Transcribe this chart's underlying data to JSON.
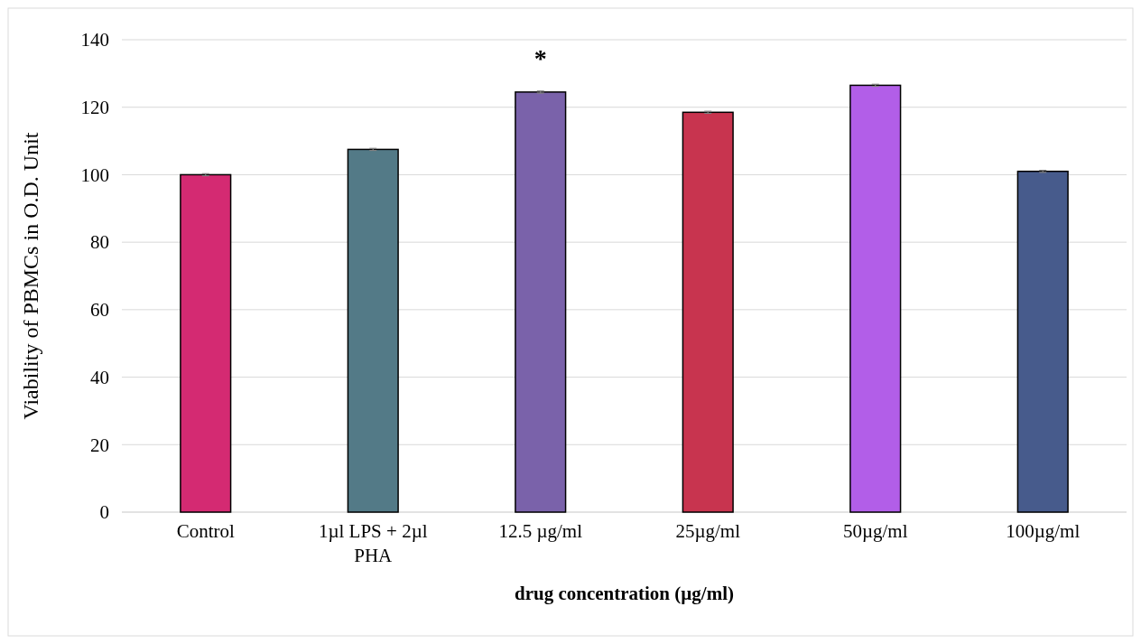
{
  "chart_data": {
    "type": "bar",
    "xlabel": "drug concentration (µg/ml)",
    "ylabel": "Viability of PBMCs in O.D. Unit",
    "categories": [
      "Control",
      "1µl LPS + 2µl PHA",
      "12.5 µg/ml",
      "25µg/ml",
      "50µg/ml",
      "100µg/ml"
    ],
    "values": [
      100,
      107.5,
      124.5,
      118.5,
      126.5,
      101
    ],
    "errors": [
      0.3,
      0.3,
      0.3,
      0.3,
      0.3,
      0.3
    ],
    "colors": [
      "#d42a72",
      "#537a87",
      "#7a62aa",
      "#c8344f",
      "#b25ee8",
      "#475b8c"
    ],
    "ylim": [
      0,
      140
    ],
    "yticks": [
      0,
      20,
      40,
      60,
      80,
      100,
      120,
      140
    ],
    "grid": "y",
    "annotations": [
      {
        "text": "*",
        "x": "12.5 µg/ml",
        "y": 124.5
      }
    ]
  }
}
